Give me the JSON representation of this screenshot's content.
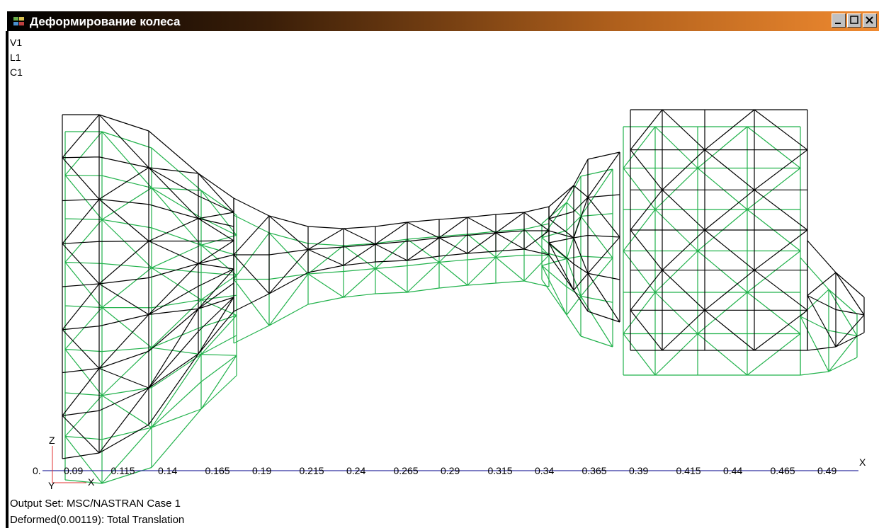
{
  "window": {
    "title": "Деформирование колеса"
  },
  "view_labels": [
    "V1",
    "L1",
    "C1"
  ],
  "ruler": {
    "labels": [
      "0.",
      "0.09",
      "0.115",
      "0.14",
      "0.165",
      "0.19",
      "0.215",
      "0.24",
      "0.265",
      "0.29",
      "0.315",
      "0.34",
      "0.365",
      "0.39",
      "0.415",
      "0.44",
      "0.465",
      "0.49"
    ],
    "end_label": "X"
  },
  "triad": {
    "z": "Z",
    "x": "X",
    "y": "Y"
  },
  "footer": {
    "output_set": "Output Set: MSC/NASTRAN Case 1",
    "deformed": "Deformed(0.00119): Total Translation"
  }
}
